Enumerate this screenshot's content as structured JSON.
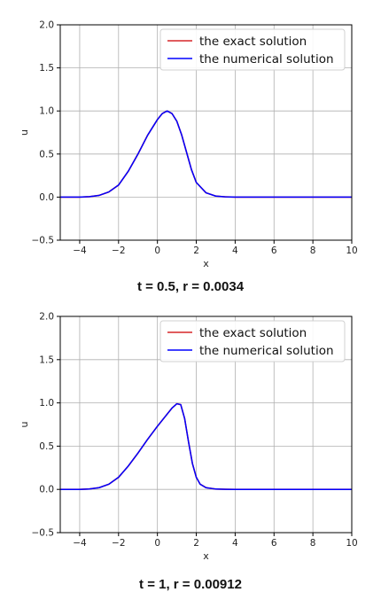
{
  "chart_data": [
    {
      "type": "line",
      "xlabel": "x",
      "ylabel": "u",
      "xlim": [
        -5,
        10
      ],
      "ylim": [
        -0.5,
        2.0
      ],
      "xticks": [
        -4,
        -2,
        0,
        2,
        4,
        6,
        8,
        10
      ],
      "yticks": [
        -0.5,
        0.0,
        0.5,
        1.0,
        1.5,
        2.0
      ],
      "xtick_labels": [
        "−4",
        "−2",
        "0",
        "2",
        "4",
        "6",
        "8",
        "10"
      ],
      "ytick_labels": [
        "−0.5",
        "0.0",
        "0.5",
        "1.0",
        "1.5",
        "2.0"
      ],
      "grid": true,
      "legend_position": "top-right",
      "series": [
        {
          "name": "the exact solution",
          "color": "#d62728",
          "x": [
            -5,
            -4,
            -3.5,
            -3,
            -2.5,
            -2,
            -1.5,
            -1,
            -0.5,
            0,
            0.25,
            0.5,
            0.75,
            1,
            1.25,
            1.5,
            1.75,
            2,
            2.5,
            3,
            3.5,
            4,
            5,
            6,
            8,
            10
          ],
          "y": [
            0.0,
            0.0,
            0.005,
            0.02,
            0.06,
            0.14,
            0.3,
            0.5,
            0.72,
            0.9,
            0.97,
            1.0,
            0.97,
            0.88,
            0.72,
            0.52,
            0.32,
            0.17,
            0.05,
            0.012,
            0.003,
            0.0,
            0.0,
            0.0,
            0.0,
            0.0
          ]
        },
        {
          "name": "the numerical solution",
          "color": "#0000ff",
          "x": [
            -5,
            -4,
            -3.5,
            -3,
            -2.5,
            -2,
            -1.5,
            -1,
            -0.5,
            0,
            0.25,
            0.5,
            0.75,
            1,
            1.25,
            1.5,
            1.75,
            2,
            2.5,
            3,
            3.5,
            4,
            5,
            6,
            8,
            10
          ],
          "y": [
            0.0,
            0.0,
            0.005,
            0.02,
            0.06,
            0.14,
            0.3,
            0.5,
            0.72,
            0.9,
            0.97,
            1.0,
            0.97,
            0.88,
            0.72,
            0.52,
            0.32,
            0.17,
            0.05,
            0.012,
            0.003,
            0.0,
            0.0,
            0.0,
            0.0,
            0.0
          ]
        }
      ],
      "caption": "t = 0.5, r = 0.0034"
    },
    {
      "type": "line",
      "xlabel": "x",
      "ylabel": "u",
      "xlim": [
        -5,
        10
      ],
      "ylim": [
        -0.5,
        2.0
      ],
      "xticks": [
        -4,
        -2,
        0,
        2,
        4,
        6,
        8,
        10
      ],
      "yticks": [
        -0.5,
        0.0,
        0.5,
        1.0,
        1.5,
        2.0
      ],
      "xtick_labels": [
        "−4",
        "−2",
        "0",
        "2",
        "4",
        "6",
        "8",
        "10"
      ],
      "ytick_labels": [
        "−0.5",
        "0.0",
        "0.5",
        "1.0",
        "1.5",
        "2.0"
      ],
      "grid": true,
      "legend_position": "top-right",
      "series": [
        {
          "name": "the exact solution",
          "color": "#d62728",
          "x": [
            -5,
            -4,
            -3.5,
            -3,
            -2.5,
            -2,
            -1.5,
            -1,
            -0.5,
            0,
            0.5,
            0.75,
            1,
            1.2,
            1.4,
            1.6,
            1.8,
            2,
            2.2,
            2.5,
            3,
            3.5,
            4,
            5,
            6,
            8,
            10
          ],
          "y": [
            0.0,
            0.0,
            0.005,
            0.02,
            0.06,
            0.14,
            0.27,
            0.42,
            0.58,
            0.73,
            0.87,
            0.94,
            0.99,
            0.98,
            0.82,
            0.55,
            0.3,
            0.14,
            0.06,
            0.02,
            0.004,
            0.001,
            0.0,
            0.0,
            0.0,
            0.0,
            0.0
          ]
        },
        {
          "name": "the numerical solution",
          "color": "#0000ff",
          "x": [
            -5,
            -4,
            -3.5,
            -3,
            -2.5,
            -2,
            -1.5,
            -1,
            -0.5,
            0,
            0.5,
            0.75,
            1,
            1.2,
            1.4,
            1.6,
            1.8,
            2,
            2.2,
            2.5,
            3,
            3.5,
            4,
            5,
            6,
            8,
            10
          ],
          "y": [
            0.0,
            0.0,
            0.005,
            0.02,
            0.06,
            0.14,
            0.27,
            0.42,
            0.58,
            0.73,
            0.87,
            0.94,
            0.99,
            0.98,
            0.82,
            0.55,
            0.3,
            0.14,
            0.06,
            0.02,
            0.004,
            0.001,
            0.0,
            0.0,
            0.0,
            0.0,
            0.0
          ]
        }
      ],
      "caption": "t = 1, r = 0.00912"
    }
  ]
}
